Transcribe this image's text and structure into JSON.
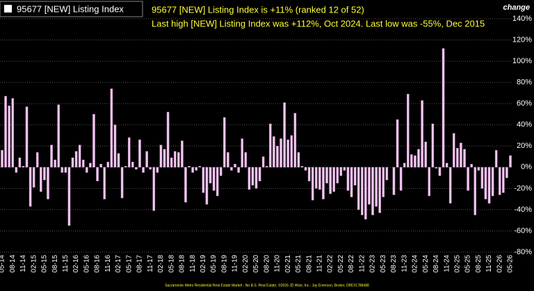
{
  "chart_data": {
    "type": "bar",
    "series": [
      {
        "name": "95677 [NEW] Listing Index",
        "color": "#f2c6f0",
        "values": [
          16,
          67,
          58,
          65,
          -5,
          9,
          1,
          57,
          -37,
          -19,
          14,
          -23,
          -12,
          -30,
          21,
          7,
          59,
          -5,
          -5,
          -55,
          9,
          15,
          21,
          7,
          -5,
          4,
          50,
          -13,
          3,
          -30,
          5,
          74,
          40,
          13,
          -29,
          1,
          28,
          5,
          -2,
          26,
          -5,
          15,
          -2,
          -41,
          -5,
          21,
          17,
          52,
          9,
          15,
          14,
          25,
          -33,
          1,
          -5,
          -3,
          1,
          -24,
          -35,
          -15,
          -22,
          -27,
          -8,
          47,
          14,
          -3,
          3,
          -5,
          27,
          14,
          -21,
          -17,
          -20,
          -13,
          10,
          1,
          41,
          29,
          20,
          27,
          61,
          26,
          30,
          51,
          14,
          1,
          -3,
          -13,
          -31,
          -20,
          -21,
          -30,
          -15,
          -25,
          -23,
          -15,
          -8,
          -3,
          -22,
          -28,
          -17,
          -40,
          -45,
          -49,
          -35,
          -45,
          -37,
          -43,
          -28,
          -12,
          0,
          -26,
          45,
          -22,
          4,
          69,
          12,
          11,
          17,
          63,
          24,
          -27,
          41,
          -1,
          -8,
          112,
          4,
          -34,
          32,
          18,
          23,
          17,
          -22,
          3,
          -45,
          -3,
          -20,
          -30,
          -34,
          -27,
          16,
          -26,
          -24,
          -10,
          11
        ]
      }
    ],
    "categories": [
      "05-14",
      null,
      null,
      "08-14",
      null,
      null,
      "11-14",
      null,
      null,
      "02-15",
      null,
      null,
      "05-15",
      null,
      null,
      "08-15",
      null,
      null,
      "11-15",
      null,
      null,
      "02-16",
      null,
      null,
      "05-16",
      null,
      null,
      "08-16",
      null,
      null,
      "11-16",
      null,
      null,
      "02-17",
      null,
      null,
      "05-17",
      null,
      null,
      "08-17",
      null,
      null,
      "11-17",
      null,
      null,
      "02-18",
      null,
      null,
      "05-18",
      null,
      null,
      "08-18",
      null,
      null,
      "11-18",
      null,
      null,
      "02-19",
      null,
      null,
      "05-19",
      null,
      null,
      "08-19",
      null,
      null,
      "11-19",
      null,
      null,
      "02-20",
      null,
      null,
      "05-20",
      null,
      null,
      "08-20",
      null,
      null,
      "11-20",
      null,
      null,
      "02-21",
      null,
      null,
      "05-21",
      null,
      null,
      "08-21",
      null,
      null,
      "11-21",
      null,
      null,
      "02-22",
      null,
      null,
      "05-22",
      null,
      null,
      "08-22",
      null,
      null,
      "11-22",
      null,
      null,
      "02-23",
      null,
      null,
      "05-23",
      null,
      null,
      "08-23",
      null,
      null,
      "11-23",
      null,
      null,
      "02-24",
      null,
      null,
      "05-24",
      null,
      null,
      "08-24",
      null,
      null,
      "11-24",
      null,
      null,
      "02-25",
      null,
      null,
      "05-25",
      null,
      null,
      "08-25",
      null,
      null,
      "11-25",
      null,
      null,
      "02-26",
      null,
      null,
      "05-26"
    ],
    "annotations": [
      "95677 [NEW] Listing Index is +11% (ranked 12 of 52)",
      "Last high [NEW] Listing Index was +112%, Oct 2024. Last low was -55%, Dec 2015"
    ],
    "y_axis_label": "change",
    "footer": "Sacramento Metro Residential Real Estate Market - No B.S. Real Estate, ©2026 JD Wise, Inc - Jay Emerson, Broker, DRE#1788488",
    "ylim": [
      -80,
      140
    ],
    "yticks": [
      {
        "value": 140,
        "label": "140%"
      },
      {
        "value": 120,
        "label": "120%"
      },
      {
        "value": 100,
        "label": "100%"
      },
      {
        "value": 80,
        "label": "80%"
      },
      {
        "value": 60,
        "label": "60%"
      },
      {
        "value": 40,
        "label": "40%"
      },
      {
        "value": 20,
        "label": "20%"
      },
      {
        "value": 0,
        "label": "0%"
      },
      {
        "value": -20,
        "label": "-20%"
      },
      {
        "value": -40,
        "label": "-40%"
      },
      {
        "value": -60,
        "label": "-60%"
      },
      {
        "value": -80,
        "label": "-80%"
      }
    ],
    "grid": true
  }
}
